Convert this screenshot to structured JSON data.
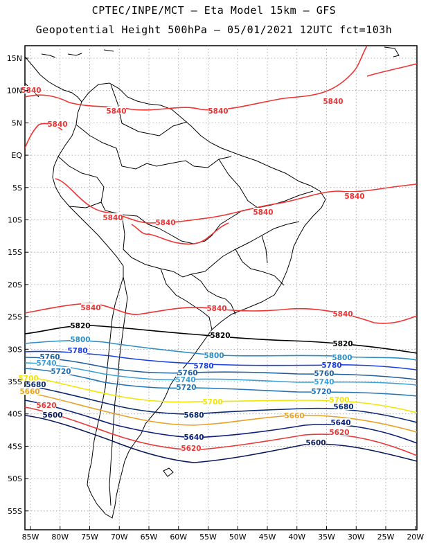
{
  "header": {
    "line1": "CPTEC/INPE/MCT –  Eta Model 15km – GFS",
    "line2": "Geopotential Height 500hPa – 05/01/2021 12UTC fct=103h"
  },
  "axes": {
    "lon_labels": [
      "85W",
      "80W",
      "75W",
      "70W",
      "65W",
      "60W",
      "55W",
      "50W",
      "45W",
      "40W",
      "35W",
      "30W",
      "25W",
      "20W"
    ],
    "lat_labels": [
      "15N",
      "10N",
      "5N",
      "EQ",
      "5S",
      "10S",
      "15S",
      "20S",
      "25S",
      "30S",
      "35S",
      "40S",
      "45S",
      "50S",
      "55S"
    ],
    "lon_range": [
      -86,
      -20
    ],
    "lat_range": [
      17,
      -58
    ],
    "grid": true
  },
  "contours": [
    {
      "value": 5840,
      "label": "5840",
      "color": "#ee3333"
    },
    {
      "value": 5820,
      "label": "5820",
      "color": "#000000"
    },
    {
      "value": 5800,
      "label": "5800",
      "color": "#2a8ec2"
    },
    {
      "value": 5780,
      "label": "5780",
      "color": "#1a3fe0"
    },
    {
      "value": 5760,
      "label": "5760",
      "color": "#1f5f9a"
    },
    {
      "value": 5740,
      "label": "5740",
      "color": "#3aa0d8"
    },
    {
      "value": 5720,
      "label": "5720",
      "color": "#2273b5"
    },
    {
      "value": 5700,
      "label": "5700",
      "color": "#f2e600"
    },
    {
      "value": 5680,
      "label": "5680",
      "color": "#0a2a70"
    },
    {
      "value": 5660,
      "label": "5660",
      "color": "#e8a020"
    },
    {
      "value": 5640,
      "label": "5640",
      "color": "#0c1f78"
    },
    {
      "value": 5620,
      "label": "5620",
      "color": "#e83838"
    },
    {
      "value": 5600,
      "label": "5600",
      "color": "#0a1a5a"
    }
  ]
}
